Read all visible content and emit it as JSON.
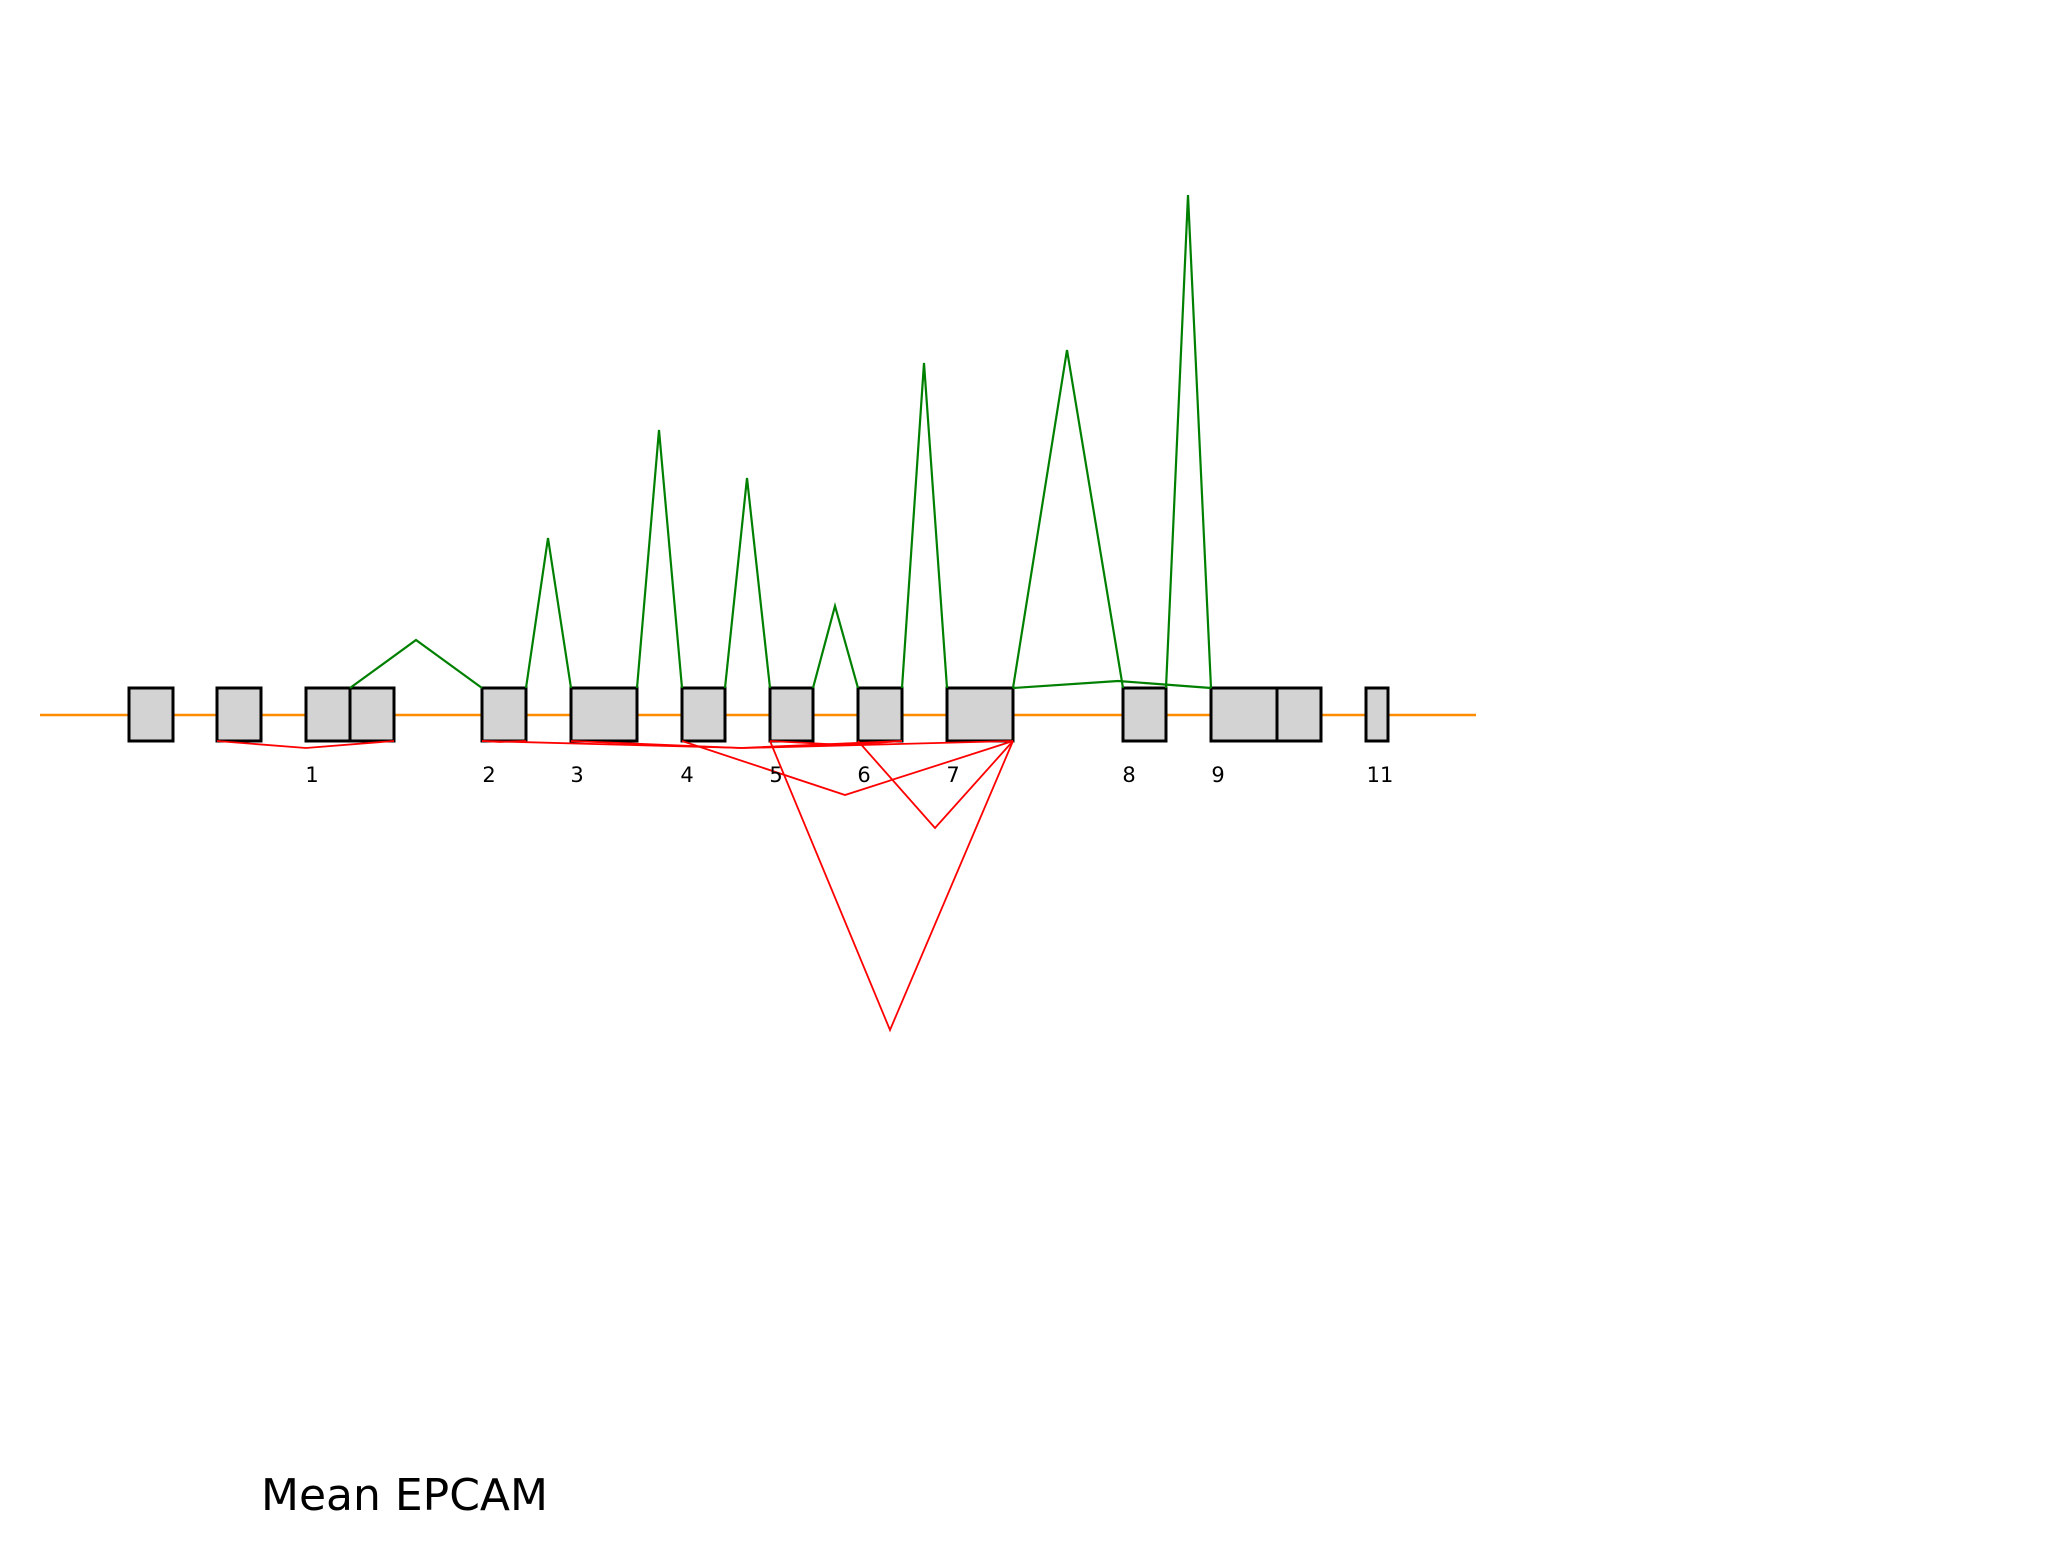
{
  "diagram": {
    "title": "Mean EPCAM",
    "colors": {
      "backbone": "#ff8c00",
      "exon_fill": "#d3d3d3",
      "exon_stroke": "#000000",
      "junction_above": "#008000",
      "junction_below": "#ff0000"
    },
    "exon_labels": [
      "1",
      "2",
      "3",
      "4",
      "5",
      "6",
      "7",
      "8",
      "9",
      "11"
    ]
  }
}
